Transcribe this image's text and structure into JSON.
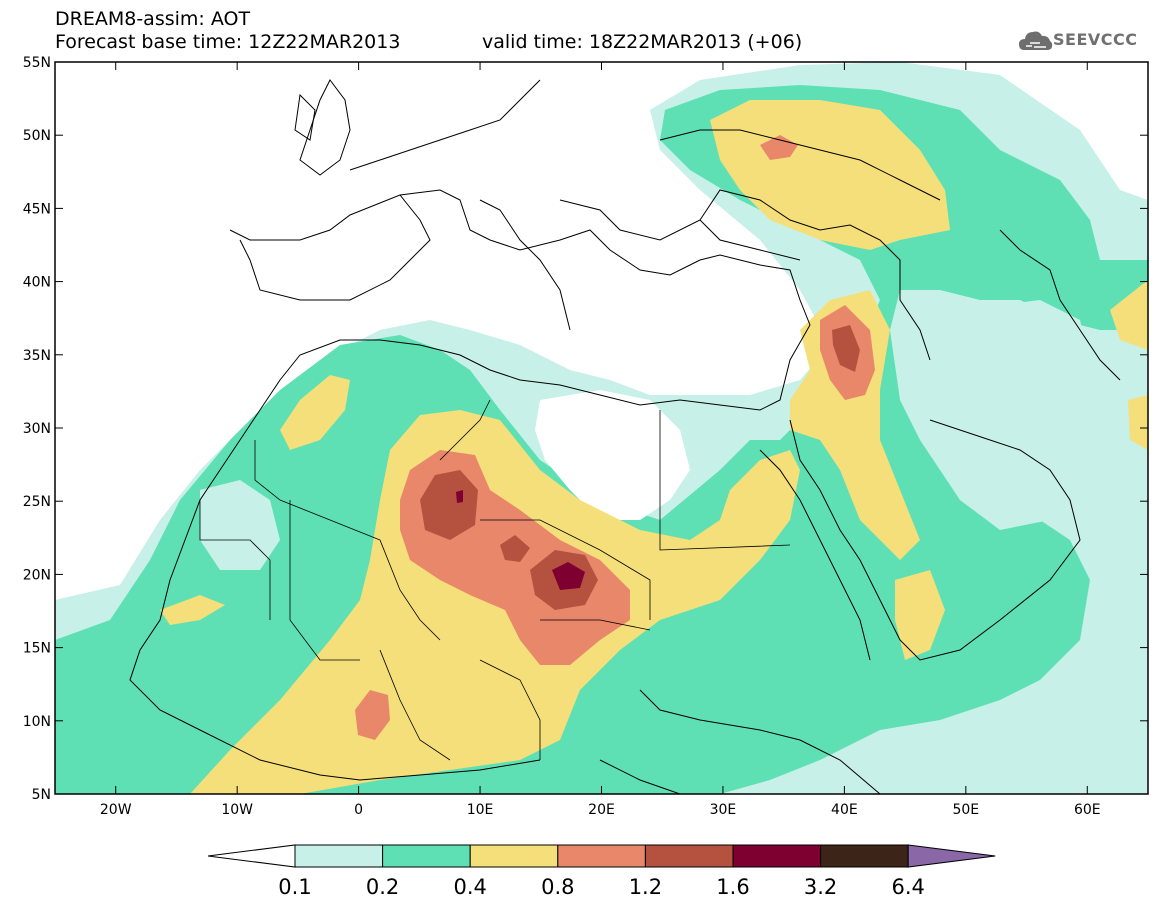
{
  "header": {
    "title": "DREAM8-assim: AOT",
    "base_time": "Forecast base time: 12Z22MAR2013",
    "valid_time": "valid time: 18Z22MAR2013 (+06)",
    "logo": "SEEVCCC"
  },
  "map": {
    "lat_ticks": [
      "55N",
      "50N",
      "45N",
      "40N",
      "35N",
      "30N",
      "25N",
      "20N",
      "15N",
      "10N",
      "5N"
    ],
    "lon_ticks": [
      "20W",
      "10W",
      "0",
      "10E",
      "20E",
      "30E",
      "40E",
      "50E",
      "60E"
    ],
    "lon_range": [
      -25,
      65
    ],
    "lat_range": [
      5,
      55
    ]
  },
  "colorbar": {
    "labels": [
      "0.1",
      "0.2",
      "0.4",
      "0.8",
      "1.2",
      "1.6",
      "3.2",
      "6.4"
    ],
    "colors": [
      "#ffffff",
      "#c7f0e8",
      "#5ee0b4",
      "#f5df7a",
      "#e8876a",
      "#b5523f",
      "#7d0030",
      "#3c2418",
      "#8a68a8"
    ]
  },
  "palette": {
    "c01": "#c7f0e8",
    "c02": "#5ee0b4",
    "c04": "#f5df7a",
    "c08": "#e8876a",
    "c12": "#b5523f",
    "c16": "#7d0030",
    "coast": "#000000"
  }
}
